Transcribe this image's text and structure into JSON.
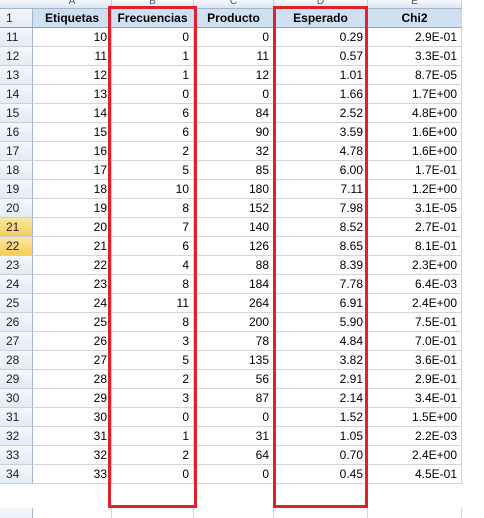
{
  "column_letters": [
    "A",
    "B",
    "C",
    "D",
    "E"
  ],
  "header": {
    "row_number": "1",
    "etiquetas": "Etiquetas",
    "frecuencias": "Frecuencias",
    "producto": "Producto",
    "esperado": "Esperado",
    "chi2": "Chi2"
  },
  "rows": [
    {
      "n": "11",
      "a": "10",
      "b": "0",
      "c": "0",
      "d": "0.29",
      "e": "2.9E-01"
    },
    {
      "n": "12",
      "a": "11",
      "b": "1",
      "c": "11",
      "d": "0.57",
      "e": "3.3E-01"
    },
    {
      "n": "13",
      "a": "12",
      "b": "1",
      "c": "12",
      "d": "1.01",
      "e": "8.7E-05"
    },
    {
      "n": "14",
      "a": "13",
      "b": "0",
      "c": "0",
      "d": "1.66",
      "e": "1.7E+00"
    },
    {
      "n": "15",
      "a": "14",
      "b": "6",
      "c": "84",
      "d": "2.52",
      "e": "4.8E+00"
    },
    {
      "n": "16",
      "a": "15",
      "b": "6",
      "c": "90",
      "d": "3.59",
      "e": "1.6E+00"
    },
    {
      "n": "17",
      "a": "16",
      "b": "2",
      "c": "32",
      "d": "4.78",
      "e": "1.6E+00"
    },
    {
      "n": "18",
      "a": "17",
      "b": "5",
      "c": "85",
      "d": "6.00",
      "e": "1.7E-01"
    },
    {
      "n": "19",
      "a": "18",
      "b": "10",
      "c": "180",
      "d": "7.11",
      "e": "1.2E+00"
    },
    {
      "n": "20",
      "a": "19",
      "b": "8",
      "c": "152",
      "d": "7.98",
      "e": "3.1E-05"
    },
    {
      "n": "21",
      "a": "20",
      "b": "7",
      "c": "140",
      "d": "8.52",
      "e": "2.7E-01"
    },
    {
      "n": "22",
      "a": "21",
      "b": "6",
      "c": "126",
      "d": "8.65",
      "e": "8.1E-01"
    },
    {
      "n": "23",
      "a": "22",
      "b": "4",
      "c": "88",
      "d": "8.39",
      "e": "2.3E+00"
    },
    {
      "n": "24",
      "a": "23",
      "b": "8",
      "c": "184",
      "d": "7.78",
      "e": "6.4E-03"
    },
    {
      "n": "25",
      "a": "24",
      "b": "11",
      "c": "264",
      "d": "6.91",
      "e": "2.4E+00"
    },
    {
      "n": "26",
      "a": "25",
      "b": "8",
      "c": "200",
      "d": "5.90",
      "e": "7.5E-01"
    },
    {
      "n": "27",
      "a": "26",
      "b": "3",
      "c": "78",
      "d": "4.84",
      "e": "7.0E-01"
    },
    {
      "n": "28",
      "a": "27",
      "b": "5",
      "c": "135",
      "d": "3.82",
      "e": "3.6E-01"
    },
    {
      "n": "29",
      "a": "28",
      "b": "2",
      "c": "56",
      "d": "2.91",
      "e": "2.9E-01"
    },
    {
      "n": "30",
      "a": "29",
      "b": "3",
      "c": "87",
      "d": "2.14",
      "e": "3.4E-01"
    },
    {
      "n": "31",
      "a": "30",
      "b": "0",
      "c": "0",
      "d": "1.52",
      "e": "1.5E+00"
    },
    {
      "n": "32",
      "a": "31",
      "b": "1",
      "c": "31",
      "d": "1.05",
      "e": "2.2E-03"
    },
    {
      "n": "33",
      "a": "32",
      "b": "2",
      "c": "64",
      "d": "0.70",
      "e": "2.4E+00"
    },
    {
      "n": "34",
      "a": "33",
      "b": "0",
      "c": "0",
      "d": "0.45",
      "e": "4.5E-01"
    }
  ],
  "selected_rows": [
    "21",
    "22"
  ],
  "highlight_color": "#e0202a"
}
